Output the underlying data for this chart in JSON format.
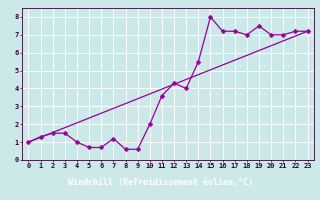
{
  "title": "",
  "xlabel": "Windchill (Refroidissement éolien,°C)",
  "ylabel": "",
  "line_color": "#990099",
  "bg_color": "#cce8e8",
  "grid_color": "#ffffff",
  "xlabel_bg": "#660066",
  "xlabel_fg": "#ffffff",
  "xlim": [
    -0.5,
    23.5
  ],
  "ylim": [
    0,
    8.5
  ],
  "xticks": [
    0,
    1,
    2,
    3,
    4,
    5,
    6,
    7,
    8,
    9,
    10,
    11,
    12,
    13,
    14,
    15,
    16,
    17,
    18,
    19,
    20,
    21,
    22,
    23
  ],
  "yticks": [
    0,
    1,
    2,
    3,
    4,
    5,
    6,
    7,
    8
  ],
  "scatter_x": [
    0,
    1,
    2,
    3,
    4,
    5,
    6,
    7,
    8,
    9,
    10,
    11,
    12,
    13,
    14,
    15,
    16,
    17,
    18,
    19,
    20,
    21,
    22,
    23
  ],
  "scatter_y": [
    1.0,
    1.3,
    1.5,
    1.5,
    1.0,
    0.7,
    0.7,
    1.2,
    0.6,
    0.6,
    2.0,
    3.6,
    4.3,
    4.0,
    5.5,
    8.0,
    7.2,
    7.2,
    7.0,
    7.5,
    7.0,
    7.0,
    7.2,
    7.2
  ],
  "trend_x": [
    0,
    23
  ],
  "trend_y": [
    1.0,
    7.2
  ],
  "marker_size": 2.5,
  "linewidth": 0.9,
  "tick_labelsize": 5,
  "xlabel_fontsize": 6,
  "font_family": "monospace"
}
